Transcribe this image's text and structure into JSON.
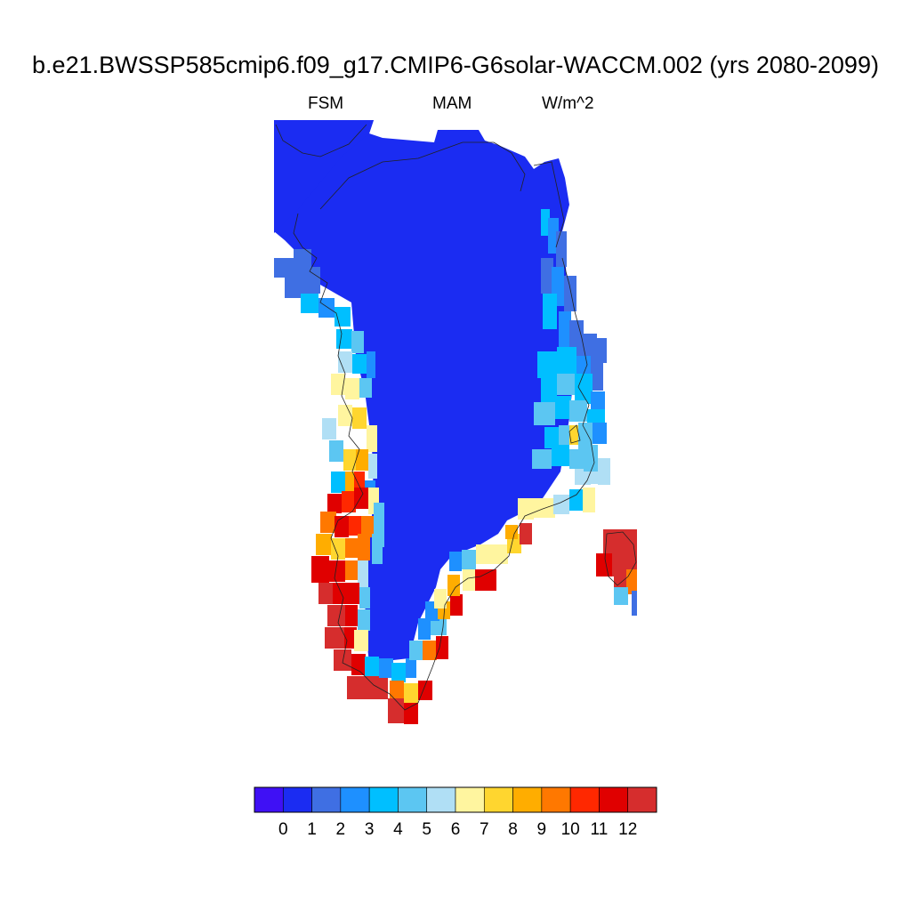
{
  "title": "b.e21.BWSSP585cmip6.f09_g17.CMIP6-G6solar-WACCM.002 (yrs 2080-2099)",
  "left_string": "FSM",
  "center_string": "MAM",
  "right_string": "W/m^2",
  "colorbar": {
    "labels": [
      "0",
      "1",
      "2",
      "3",
      "4",
      "5",
      "6",
      "7",
      "8",
      "9",
      "10",
      "11",
      "12"
    ],
    "colors": [
      "#3f10f5",
      "#1b2cf2",
      "#3f6fe3",
      "#1e90ff",
      "#00bfff",
      "#5cc6f2",
      "#b0dff5",
      "#fff59f",
      "#ffd62f",
      "#ffad00",
      "#ff7800",
      "#ff2800",
      "#e00000",
      "#d62d2d"
    ]
  }
}
